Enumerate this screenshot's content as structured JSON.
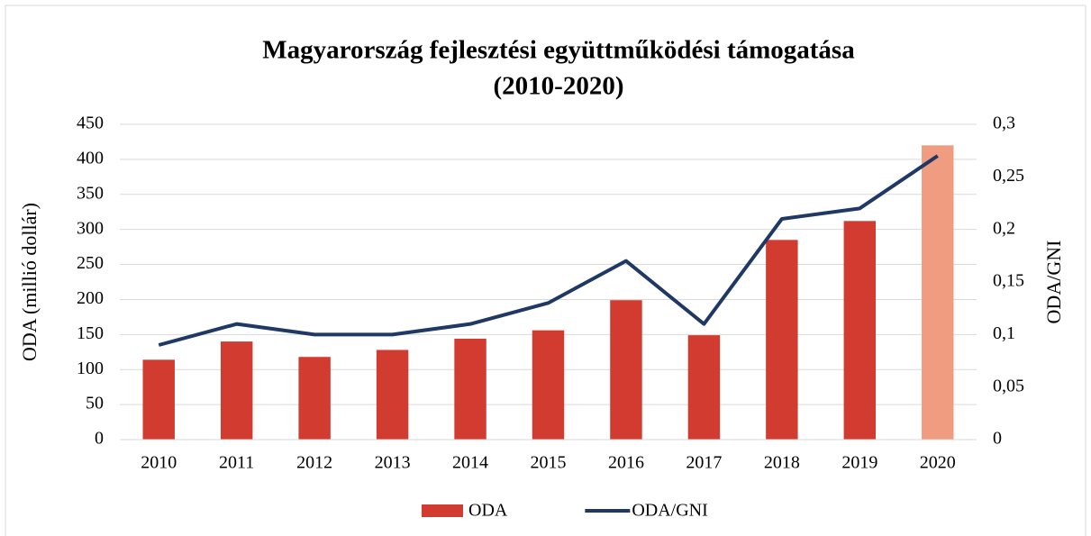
{
  "chart_data": {
    "type": "bar_line",
    "title": "Magyarország fejlesztési együttműködési támogatása",
    "subtitle": "(2010-2020)",
    "y_label": "ODA (millió dollár)",
    "y2_label": "ODA/GNI",
    "categories": [
      "2010",
      "2011",
      "2012",
      "2013",
      "2014",
      "2015",
      "2016",
      "2017",
      "2018",
      "2019",
      "2020"
    ],
    "series": [
      {
        "name": "ODA",
        "type": "bar",
        "color": "#d13b30",
        "colors": [
          "#d13b30",
          "#d13b30",
          "#d13b30",
          "#d13b30",
          "#d13b30",
          "#d13b30",
          "#d13b30",
          "#d13b30",
          "#d13b30",
          "#d13b30",
          "#f09c80"
        ],
        "values": [
          114,
          140,
          118,
          128,
          144,
          156,
          199,
          149,
          285,
          312,
          420
        ]
      },
      {
        "name": "ODA/GNI",
        "type": "line",
        "axis": "y2",
        "color": "#1f3864",
        "values": [
          0.09,
          0.11,
          0.1,
          0.1,
          0.11,
          0.13,
          0.17,
          0.11,
          0.21,
          0.22,
          0.27
        ]
      }
    ],
    "ylim": [
      0,
      450
    ],
    "yticks": [
      0,
      50,
      100,
      150,
      200,
      250,
      300,
      350,
      400,
      450
    ],
    "y2lim": [
      0,
      0.3
    ],
    "y2ticks": [
      0,
      {
        "value": 0.05,
        "label": "0,05"
      },
      {
        "value": 0.1,
        "label": "0,1"
      },
      {
        "value": 0.15,
        "label": "0,15"
      },
      {
        "value": 0.2,
        "label": "0,2"
      },
      {
        "value": 0.25,
        "label": "0,25"
      },
      {
        "value": 0.3,
        "label": "0,3"
      }
    ],
    "grid": true,
    "legend": "bottom"
  }
}
